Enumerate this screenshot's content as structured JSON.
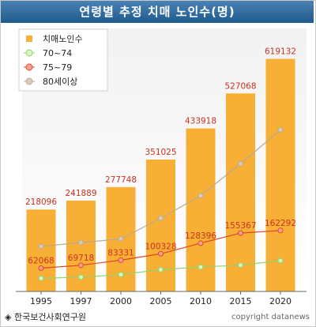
{
  "chart_data": {
    "type": "bar",
    "title": "연령별 추정 치매 노인수(명)",
    "categories": [
      "1995",
      "1997",
      "2000",
      "2005",
      "2010",
      "2015",
      "2020"
    ],
    "series": [
      {
        "name": "치매노인수",
        "kind": "bar",
        "color": "#f7b035",
        "label_color": "#c8321e",
        "values": [
          218096,
          241889,
          277748,
          351025,
          433918,
          527068,
          619132
        ]
      },
      {
        "name": "70~74",
        "kind": "line",
        "color": "#8fd36a",
        "fill": "#d8f5c0",
        "values": [
          35000,
          38000,
          45000,
          58000,
          65000,
          70000,
          82000
        ]
      },
      {
        "name": "75~79",
        "kind": "line",
        "color": "#e0442a",
        "fill": "#f3a48f",
        "label_color": "#c8321e",
        "values": [
          62068,
          69718,
          83331,
          100328,
          128396,
          155367,
          162292
        ]
      },
      {
        "name": "80세이상",
        "kind": "line",
        "color": "#b8aa92",
        "fill": "#d9cbb3",
        "values": [
          120000,
          130000,
          140000,
          195000,
          255000,
          340000,
          430000
        ]
      }
    ],
    "ylim": [
      0,
      700000
    ],
    "xlabel": "",
    "ylabel": "",
    "legend_position": "top-left",
    "grid": false
  },
  "footer": {
    "source": "◈ 한국보건사회연구원",
    "copyright": "copyright datanews"
  }
}
